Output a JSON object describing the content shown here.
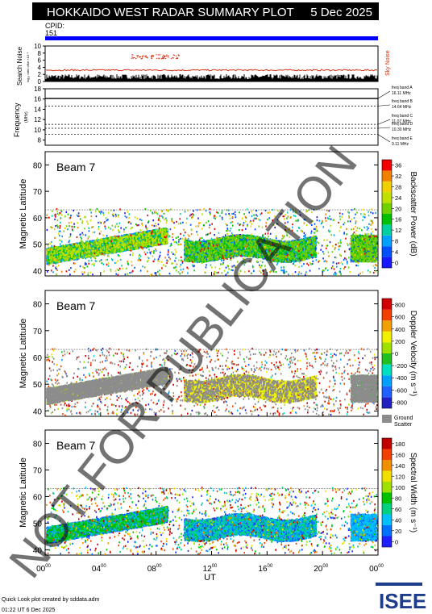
{
  "header": {
    "title": "HOKKAIDO WEST RADAR SUMMARY PLOT",
    "date": "5 Dec 2025",
    "cpid_label": "CPID:",
    "cpid_value": "151"
  },
  "colors": {
    "header_bg": "#000000",
    "cpid_bar": "#0000ff",
    "noise_red": "#d23010",
    "frame": "#000000"
  },
  "noise_panel": {
    "ylabel": "Search Noise",
    "ylabel_small": "log₁₀ ratio ofhe ×10⁻¹",
    "sky_label": "Sky Noise",
    "yticks": [
      "0",
      "2",
      "4",
      "6",
      "8",
      "10"
    ]
  },
  "freq_panel": {
    "ylabel": "Frequency",
    "unit": "(MHz)",
    "yticks": [
      "8",
      "10",
      "12",
      "14",
      "16",
      "18"
    ],
    "bands": [
      {
        "name": "freq band A",
        "value": "16.11 MHz",
        "freq": 16.11
      },
      {
        "name": "freq band B",
        "value": "14.64 MHz",
        "freq": 14.64
      },
      {
        "name": "freq band C",
        "value": "11.07 MHz",
        "freq": 11.07
      },
      {
        "name": "freq band D",
        "value": "10.30 MHz",
        "freq": 10.3
      },
      {
        "name": "freq band E",
        "value": "9.11 MHz",
        "freq": 9.11
      }
    ]
  },
  "panels": [
    {
      "id": "power",
      "beam": "Beam  7",
      "ylabel": "Magnetic Latitude",
      "cbar_label": "Backscatter Power (dB)",
      "cbar_ticks": [
        "0",
        "4",
        "8",
        "12",
        "16",
        "20",
        "24",
        "28",
        "32",
        "36"
      ],
      "yticks": [
        "40",
        "50",
        "60",
        "70",
        "80"
      ]
    },
    {
      "id": "velocity",
      "beam": "Beam  7",
      "ylabel": "Magnetic Latitude",
      "cbar_label": "Doppler Velocity (m s⁻¹)",
      "cbar_ticks": [
        "-800",
        "-600",
        "-400",
        "-200",
        "0",
        "200",
        "400",
        "600",
        "800"
      ],
      "ground_scatter": "Ground",
      "ground_scatter2": "Scatter",
      "yticks": [
        "40",
        "50",
        "60",
        "70",
        "80"
      ]
    },
    {
      "id": "width",
      "beam": "Beam  7",
      "ylabel": "Magnetic Latitude",
      "cbar_label": "Spectral Width (m s⁻¹)",
      "cbar_ticks": [
        "0",
        "20",
        "40",
        "60",
        "80",
        "100",
        "120",
        "140",
        "160",
        "180"
      ],
      "yticks": [
        "40",
        "50",
        "60",
        "70",
        "80"
      ]
    }
  ],
  "xaxis": {
    "label": "UT",
    "ticks": [
      {
        "h": "00",
        "m": "00"
      },
      {
        "h": "04",
        "m": "00"
      },
      {
        "h": "08",
        "m": "00"
      },
      {
        "h": "12",
        "m": "00"
      },
      {
        "h": "16",
        "m": "00"
      },
      {
        "h": "20",
        "m": "00"
      },
      {
        "h": "00",
        "m": "00"
      }
    ]
  },
  "watermark": "NOT FOR PUBLICATION",
  "footer": {
    "line1": "Quick Look plot created by sddata.adm",
    "line2": "01:22 UT  6 Dec 2025",
    "logo": "ISEE"
  },
  "chart_data": {
    "type": "heatmap",
    "x_range_hours": [
      0,
      24
    ],
    "ylim": [
      38,
      85
    ],
    "power_range": [
      0,
      36
    ],
    "velocity_range": [
      -800,
      800
    ],
    "width_range": [
      0,
      180
    ],
    "noise_ylim": [
      0,
      10
    ],
    "freq_ylim": [
      7,
      18
    ]
  }
}
